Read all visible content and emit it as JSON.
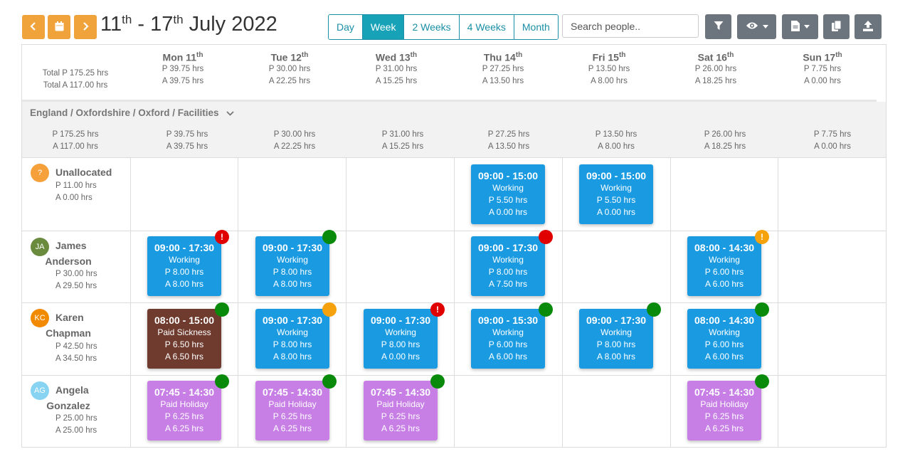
{
  "nav": {
    "prev_icon": "‹",
    "calendar_icon": "calendar",
    "next_icon": "›"
  },
  "title": {
    "start_day": "11",
    "start_suffix": "th",
    "sep": " - ",
    "end_day": "17",
    "end_suffix": "th",
    "month_year": " July 2022"
  },
  "views": [
    "Day",
    "Week",
    "2 Weeks",
    "4 Weeks",
    "Month"
  ],
  "active_view": "Week",
  "search": {
    "placeholder": "Search people..",
    "value": ""
  },
  "totals": {
    "planned": "Total P 175.25 hrs",
    "actual": "Total A 117.00 hrs"
  },
  "days": [
    {
      "name": "Mon 11",
      "sup": "th",
      "p": "P 39.75 hrs",
      "a": "A 39.75 hrs"
    },
    {
      "name": "Tue 12",
      "sup": "th",
      "p": "P 30.00 hrs",
      "a": "A 22.25 hrs"
    },
    {
      "name": "Wed 13",
      "sup": "th",
      "p": "P 31.00 hrs",
      "a": "A 15.25 hrs"
    },
    {
      "name": "Thu 14",
      "sup": "th",
      "p": "P 27.25 hrs",
      "a": "A 13.50 hrs"
    },
    {
      "name": "Fri 15",
      "sup": "th",
      "p": "P 13.50 hrs",
      "a": "A 8.00 hrs"
    },
    {
      "name": "Sat 16",
      "sup": "th",
      "p": "P 26.00 hrs",
      "a": "A 18.25 hrs"
    },
    {
      "name": "Sun 17",
      "sup": "th",
      "p": "P 7.75 hrs",
      "a": "A 0.00 hrs"
    }
  ],
  "group": {
    "title": "England / Oxfordshire / Oxford / Facilities",
    "total_p": "P 175.25 hrs",
    "total_a": "A 117.00 hrs"
  },
  "people": [
    {
      "initials": "?",
      "name": "Unallocated",
      "color": "#f5a03a",
      "p": "P 11.00 hrs",
      "a": "A 0.00 hrs"
    },
    {
      "initials": "JA",
      "name_line1": "James",
      "name_line2": "Anderson",
      "color": "#6a8a3e",
      "p": "P 30.00 hrs",
      "a": "A 29.50 hrs"
    },
    {
      "initials": "KC",
      "name_line1": "Karen",
      "name_line2": "Chapman",
      "color": "#f28a00",
      "p": "P 42.50 hrs",
      "a": "A 34.50 hrs"
    },
    {
      "initials": "AG",
      "name_line1": "Angela",
      "name_line2": "Gonzalez",
      "color": "#87d3f2",
      "p": "P 25.00 hrs",
      "a": "A 25.00 hrs"
    }
  ],
  "shifts": [
    {
      "time": "09:00 - 15:00",
      "type": "Working",
      "p": "P 5.50 hrs",
      "a": "A 0.00 hrs"
    },
    {
      "time": "09:00 - 15:00",
      "type": "Working",
      "p": "P 5.50 hrs",
      "a": "A 0.00 hrs"
    },
    {
      "time": "09:00 - 17:30",
      "type": "Working",
      "p": "P 8.00 hrs",
      "a": "A 8.00 hrs"
    },
    {
      "time": "09:00 - 17:30",
      "type": "Working",
      "p": "P 8.00 hrs",
      "a": "A 8.00 hrs"
    },
    {
      "time": "09:00 - 17:30",
      "type": "Working",
      "p": "P 8.00 hrs",
      "a": "A 7.50 hrs"
    },
    {
      "time": "08:00 - 14:30",
      "type": "Working",
      "p": "P 6.00 hrs",
      "a": "A 6.00 hrs"
    },
    {
      "time": "08:00 - 15:00",
      "type": "Paid Sickness",
      "p": "P 6.50 hrs",
      "a": "A 6.50 hrs"
    },
    {
      "time": "09:00 - 17:30",
      "type": "Working",
      "p": "P 8.00 hrs",
      "a": "A 8.00 hrs"
    },
    {
      "time": "09:00 - 17:30",
      "type": "Working",
      "p": "P 8.00 hrs",
      "a": "A 0.00 hrs"
    },
    {
      "time": "09:00 - 15:30",
      "type": "Working",
      "p": "P 6.00 hrs",
      "a": "A 6.00 hrs"
    },
    {
      "time": "09:00 - 17:30",
      "type": "Working",
      "p": "P 8.00 hrs",
      "a": "A 8.00 hrs"
    },
    {
      "time": "08:00 - 14:30",
      "type": "Working",
      "p": "P 6.00 hrs",
      "a": "A 6.00 hrs"
    },
    {
      "time": "07:45 - 14:30",
      "type": "Paid Holiday",
      "p": "P 6.25 hrs",
      "a": "A 6.25 hrs"
    },
    {
      "time": "07:45 - 14:30",
      "type": "Paid Holiday",
      "p": "P 6.25 hrs",
      "a": "A 6.25 hrs"
    },
    {
      "time": "07:45 - 14:30",
      "type": "Paid Holiday",
      "p": "P 6.25 hrs",
      "a": "A 6.25 hrs"
    },
    {
      "time": "07:45 - 14:30",
      "type": "Paid Holiday",
      "p": "P 6.25 hrs",
      "a": "A 6.25 hrs"
    }
  ],
  "alert_glyph": "!",
  "colors": {
    "accent_orange": "#f0a33a",
    "view_teal": "#17a2b8",
    "toolbar_gray": "#6c757d",
    "shift_working": "#1a9be1",
    "shift_holiday": "#c77fe6",
    "shift_sickness": "#6e3b2e",
    "status_ok": "#0a8a0a",
    "status_error": "#e00000",
    "status_warning": "#f5a20c"
  }
}
